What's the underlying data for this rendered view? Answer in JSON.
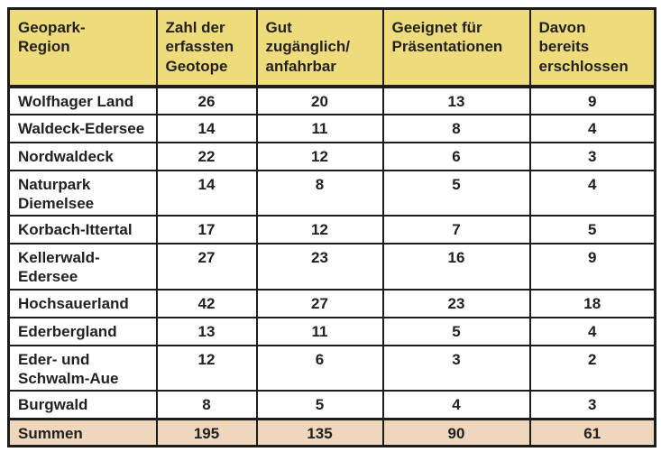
{
  "table": {
    "headers": [
      "Geopark-\nRegion",
      "Zahl der\nerfassten\nGeotope",
      "Gut\nzugänglich/\nanfahrbar",
      "Geeignet für\nPräsentationen",
      "Davon\nbereits\nerschlossen"
    ],
    "rows": [
      {
        "region": "Wolfhager Land",
        "values": [
          "26",
          "20",
          "13",
          "9"
        ]
      },
      {
        "region": "Waldeck-Edersee",
        "values": [
          "14",
          "11",
          "8",
          "4"
        ]
      },
      {
        "region": "Nordwaldeck",
        "values": [
          "22",
          "12",
          "6",
          "3"
        ]
      },
      {
        "region": "Naturpark\nDiemelsee",
        "values": [
          "14",
          "8",
          "5",
          "4"
        ]
      },
      {
        "region": "Korbach-Ittertal",
        "values": [
          "17",
          "12",
          "7",
          "5"
        ]
      },
      {
        "region": "Kellerwald-\nEdersee",
        "values": [
          "27",
          "23",
          "16",
          "9"
        ]
      },
      {
        "region": "Hochsauerland",
        "values": [
          "42",
          "27",
          "23",
          "18"
        ]
      },
      {
        "region": "Ederbergland",
        "values": [
          "13",
          "11",
          "5",
          "4"
        ]
      },
      {
        "region": "Eder- und\nSchwalm-Aue",
        "values": [
          "12",
          "6",
          "3",
          "2"
        ]
      },
      {
        "region": "Burgwald",
        "values": [
          "8",
          "5",
          "4",
          "3"
        ]
      }
    ],
    "summary": {
      "label": "Summen",
      "values": [
        "195",
        "135",
        "90",
        "61"
      ]
    },
    "colors": {
      "header_bg": "#eedc7c",
      "summary_bg": "#eed7bc",
      "border": "#1c1c1a",
      "text": "#232020"
    }
  }
}
